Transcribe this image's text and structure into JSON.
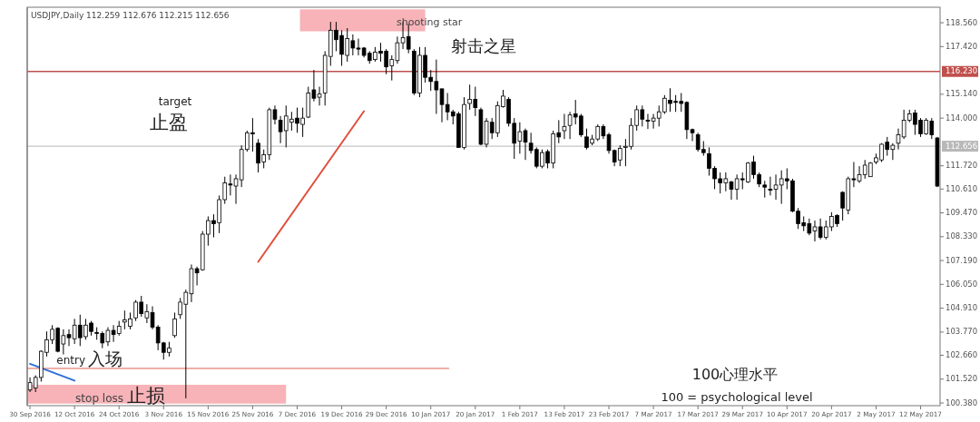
{
  "chart_data": {
    "type": "candlestick",
    "title": "USDJPY,Daily 112.259 112.676 112.215 112.656",
    "categories": [
      "30 Sep 2016",
      null,
      null,
      null,
      null,
      null,
      null,
      null,
      "12 Oct 2016",
      null,
      null,
      null,
      null,
      null,
      null,
      null,
      "24 Oct 2016",
      null,
      null,
      null,
      null,
      null,
      null,
      null,
      "3 Nov 2016",
      null,
      null,
      null,
      null,
      null,
      null,
      null,
      "15 Nov 2016",
      null,
      null,
      null,
      null,
      null,
      null,
      null,
      "25 Nov 2016",
      null,
      null,
      null,
      null,
      null,
      null,
      null,
      "7 Dec 2016",
      null,
      null,
      null,
      null,
      null,
      null,
      null,
      "19 Dec 2016",
      null,
      null,
      null,
      null,
      null,
      null,
      null,
      "29 Dec 2016",
      null,
      null,
      null,
      null,
      null,
      null,
      null,
      "10 Jan 2017",
      null,
      null,
      null,
      null,
      null,
      null,
      null,
      "20 Jan 2017",
      null,
      null,
      null,
      null,
      null,
      null,
      null,
      "1 Feb 2017",
      null,
      null,
      null,
      null,
      null,
      null,
      null,
      "13 Feb 2017",
      null,
      null,
      null,
      null,
      null,
      null,
      null,
      "23 Feb 2017",
      null,
      null,
      null,
      null,
      null,
      null,
      null,
      "7 Mar 2017",
      null,
      null,
      null,
      null,
      null,
      null,
      null,
      "17 Mar 2017",
      null,
      null,
      null,
      null,
      null,
      null,
      null,
      "29 Mar 2017",
      null,
      null,
      null,
      null,
      null,
      null,
      null,
      "10 Apr 2017",
      null,
      null,
      null,
      null,
      null,
      null,
      null,
      "20 Apr 2017",
      null,
      null,
      null,
      null,
      null,
      null,
      null,
      "2 May 2017",
      null,
      null,
      null,
      null,
      null,
      null,
      null,
      "12 May 2017",
      null,
      null,
      null
    ],
    "ohlc": [
      [
        101.0,
        101.6,
        100.9,
        101.35
      ],
      [
        101.1,
        101.7,
        100.9,
        101.6
      ],
      [
        101.6,
        102.9,
        101.4,
        102.85
      ],
      [
        102.8,
        103.8,
        102.6,
        103.4
      ],
      [
        103.4,
        104.1,
        103.2,
        103.9
      ],
      [
        103.95,
        104.0,
        102.8,
        102.85
      ],
      [
        103.2,
        103.9,
        102.7,
        103.6
      ],
      [
        103.65,
        103.9,
        103.1,
        103.5
      ],
      [
        103.45,
        104.4,
        103.2,
        104.1
      ],
      [
        104.1,
        104.6,
        103.1,
        103.5
      ],
      [
        103.55,
        104.4,
        103.4,
        104.1
      ],
      [
        104.2,
        104.3,
        103.6,
        103.8
      ],
      [
        103.75,
        104.0,
        103.4,
        103.7
      ],
      [
        103.7,
        103.8,
        103.0,
        103.25
      ],
      [
        103.3,
        104.0,
        103.1,
        103.85
      ],
      [
        103.85,
        104.1,
        103.3,
        103.65
      ],
      [
        103.7,
        104.3,
        103.6,
        104.05
      ],
      [
        104.25,
        104.8,
        103.9,
        104.35
      ],
      [
        104.05,
        104.7,
        103.9,
        104.4
      ],
      [
        104.45,
        105.3,
        104.3,
        105.2
      ],
      [
        105.2,
        105.5,
        104.5,
        104.65
      ],
      [
        104.45,
        105.1,
        104.2,
        104.75
      ],
      [
        104.7,
        105.0,
        103.9,
        104.0
      ],
      [
        104.0,
        104.1,
        102.9,
        103.25
      ],
      [
        103.25,
        103.3,
        102.45,
        102.8
      ],
      [
        102.8,
        103.3,
        102.6,
        103.0
      ],
      [
        103.6,
        104.7,
        103.5,
        104.4
      ],
      [
        104.6,
        105.4,
        104.4,
        105.2
      ],
      [
        105.1,
        105.8,
        100.6,
        105.67
      ],
      [
        105.6,
        107.0,
        105.2,
        106.8
      ],
      [
        106.8,
        106.9,
        106.0,
        106.6
      ],
      [
        106.75,
        108.6,
        106.7,
        108.45
      ],
      [
        108.45,
        109.3,
        107.9,
        109.1
      ],
      [
        109.1,
        109.4,
        108.3,
        108.95
      ],
      [
        109.0,
        110.3,
        108.5,
        110.1
      ],
      [
        110.1,
        111.2,
        109.9,
        110.9
      ],
      [
        110.85,
        111.3,
        110.3,
        110.8
      ],
      [
        110.75,
        111.3,
        109.9,
        111.1
      ],
      [
        111.05,
        112.7,
        110.7,
        112.5
      ],
      [
        112.5,
        113.4,
        112.4,
        113.3
      ],
      [
        113.3,
        114.0,
        112.4,
        113.25
      ],
      [
        112.8,
        113.0,
        111.4,
        111.85
      ],
      [
        111.9,
        112.5,
        111.6,
        112.25
      ],
      [
        112.25,
        114.5,
        112.0,
        114.4
      ],
      [
        114.4,
        114.6,
        113.7,
        113.95
      ],
      [
        113.9,
        114.1,
        112.8,
        113.35
      ],
      [
        113.4,
        114.6,
        112.6,
        114.1
      ],
      [
        113.8,
        114.3,
        113.4,
        113.95
      ],
      [
        114.0,
        114.5,
        113.3,
        113.75
      ],
      [
        113.7,
        114.5,
        113.1,
        114.0
      ],
      [
        114.05,
        115.5,
        114.0,
        115.2
      ],
      [
        115.35,
        116.3,
        114.8,
        114.95
      ],
      [
        115.0,
        115.5,
        114.6,
        115.15
      ],
      [
        115.2,
        117.2,
        114.6,
        117.0
      ],
      [
        116.95,
        118.6,
        116.5,
        118.2
      ],
      [
        118.2,
        118.6,
        117.2,
        117.75
      ],
      [
        117.95,
        118.2,
        116.5,
        117.05
      ],
      [
        117.0,
        118.3,
        116.7,
        117.8
      ],
      [
        117.7,
        118.0,
        117.0,
        117.35
      ],
      [
        117.35,
        117.8,
        117.0,
        117.3
      ],
      [
        117.35,
        117.4,
        116.9,
        117.0
      ],
      [
        117.1,
        117.2,
        116.6,
        116.75
      ],
      [
        116.8,
        117.4,
        116.7,
        117.15
      ],
      [
        117.2,
        117.6,
        116.7,
        117.1
      ],
      [
        117.2,
        117.3,
        116.1,
        116.45
      ],
      [
        116.5,
        117.0,
        115.8,
        116.8
      ],
      [
        116.75,
        117.9,
        116.6,
        117.6
      ],
      [
        117.6,
        118.6,
        117.3,
        117.85
      ],
      [
        117.9,
        118.5,
        117.1,
        117.3
      ],
      [
        117.2,
        117.3,
        115.1,
        115.2
      ],
      [
        115.2,
        117.4,
        115.0,
        117.0
      ],
      [
        117.0,
        117.4,
        115.7,
        115.95
      ],
      [
        115.95,
        116.3,
        115.3,
        115.75
      ],
      [
        115.75,
        116.8,
        114.2,
        115.35
      ],
      [
        115.4,
        115.4,
        113.8,
        114.65
      ],
      [
        114.65,
        115.2,
        113.9,
        114.3
      ],
      [
        114.3,
        114.4,
        113.7,
        114.1
      ],
      [
        114.2,
        114.3,
        112.6,
        112.6
      ],
      [
        112.6,
        115.0,
        112.5,
        114.65
      ],
      [
        114.7,
        115.6,
        114.4,
        114.9
      ],
      [
        114.9,
        115.5,
        114.1,
        114.5
      ],
      [
        114.4,
        114.5,
        112.7,
        112.75
      ],
      [
        112.75,
        114.0,
        112.6,
        113.85
      ],
      [
        113.8,
        114.0,
        113.0,
        113.3
      ],
      [
        113.3,
        114.8,
        113.1,
        114.6
      ],
      [
        114.55,
        115.35,
        114.5,
        115.05
      ],
      [
        114.9,
        115.0,
        113.6,
        113.75
      ],
      [
        113.75,
        114.0,
        112.05,
        112.8
      ],
      [
        112.9,
        113.8,
        112.3,
        113.35
      ],
      [
        113.4,
        113.5,
        112.0,
        112.85
      ],
      [
        112.8,
        113.3,
        112.3,
        112.45
      ],
      [
        112.5,
        112.6,
        111.6,
        111.7
      ],
      [
        111.7,
        112.5,
        111.6,
        112.35
      ],
      [
        112.4,
        112.5,
        111.6,
        111.85
      ],
      [
        111.85,
        113.4,
        111.6,
        113.25
      ],
      [
        113.3,
        113.9,
        112.8,
        113.1
      ],
      [
        113.4,
        114.2,
        113.0,
        113.6
      ],
      [
        113.65,
        114.3,
        113.0,
        114.15
      ],
      [
        114.2,
        114.87,
        113.7,
        114.05
      ],
      [
        114.1,
        114.2,
        113.1,
        113.2
      ],
      [
        113.1,
        113.5,
        112.5,
        112.6
      ],
      [
        112.8,
        113.2,
        112.7,
        113.0
      ],
      [
        113.0,
        113.7,
        112.9,
        113.6
      ],
      [
        113.6,
        113.7,
        113.0,
        113.15
      ],
      [
        113.2,
        113.3,
        112.3,
        112.45
      ],
      [
        112.45,
        112.5,
        111.7,
        111.9
      ],
      [
        112.0,
        112.7,
        111.7,
        112.55
      ],
      [
        112.6,
        113.0,
        111.7,
        112.65
      ],
      [
        112.65,
        114.0,
        112.5,
        113.65
      ],
      [
        113.65,
        114.6,
        113.4,
        114.4
      ],
      [
        114.4,
        114.6,
        113.6,
        113.95
      ],
      [
        113.9,
        114.2,
        113.48,
        113.85
      ],
      [
        113.85,
        114.2,
        113.5,
        114.0
      ],
      [
        114.0,
        114.6,
        113.6,
        114.3
      ],
      [
        114.3,
        115.1,
        114.2,
        114.95
      ],
      [
        114.85,
        115.43,
        114.3,
        114.7
      ],
      [
        114.8,
        115.1,
        114.3,
        114.75
      ],
      [
        114.8,
        115.2,
        114.3,
        114.7
      ],
      [
        114.75,
        114.8,
        113.0,
        113.45
      ],
      [
        113.45,
        113.5,
        112.9,
        113.3
      ],
      [
        113.2,
        113.3,
        112.4,
        112.5
      ],
      [
        112.5,
        112.9,
        112.2,
        112.35
      ],
      [
        112.3,
        112.6,
        111.25,
        111.6
      ],
      [
        111.6,
        111.7,
        110.6,
        111.1
      ],
      [
        111.1,
        111.4,
        110.4,
        110.9
      ],
      [
        110.9,
        111.4,
        110.5,
        111.1
      ],
      [
        110.95,
        111.0,
        110.1,
        110.6
      ],
      [
        110.6,
        111.3,
        110.1,
        111.1
      ],
      [
        111.1,
        111.4,
        110.6,
        111.05
      ],
      [
        110.95,
        111.9,
        110.9,
        111.85
      ],
      [
        111.9,
        112.2,
        111.1,
        111.3
      ],
      [
        111.3,
        111.4,
        110.7,
        110.85
      ],
      [
        110.8,
        111.0,
        110.2,
        110.7
      ],
      [
        110.6,
        111.2,
        110.3,
        110.55
      ],
      [
        110.6,
        111.3,
        110.1,
        110.8
      ],
      [
        110.8,
        111.5,
        109.9,
        111.1
      ],
      [
        111.1,
        111.6,
        110.6,
        111.0
      ],
      [
        111.0,
        111.1,
        109.5,
        109.55
      ],
      [
        109.55,
        109.7,
        108.7,
        108.95
      ],
      [
        109.0,
        109.3,
        108.6,
        108.85
      ],
      [
        108.95,
        109.2,
        108.4,
        108.5
      ],
      [
        108.6,
        109.1,
        108.1,
        108.8
      ],
      [
        108.8,
        109.2,
        108.2,
        108.3
      ],
      [
        108.3,
        109.1,
        108.2,
        108.8
      ],
      [
        108.8,
        109.5,
        108.6,
        109.3
      ],
      [
        109.35,
        109.4,
        108.8,
        108.95
      ],
      [
        110.45,
        110.5,
        109.1,
        109.7
      ],
      [
        109.6,
        111.2,
        109.4,
        111.1
      ],
      [
        111.1,
        111.9,
        110.7,
        111.05
      ],
      [
        111.0,
        111.7,
        110.9,
        111.3
      ],
      [
        111.3,
        112.0,
        111.1,
        111.75
      ],
      [
        111.2,
        111.9,
        111.2,
        111.85
      ],
      [
        111.9,
        112.3,
        111.8,
        112.1
      ],
      [
        112.0,
        112.8,
        111.9,
        112.75
      ],
      [
        112.85,
        113.1,
        112.2,
        112.5
      ],
      [
        112.5,
        112.8,
        112.0,
        112.7
      ],
      [
        112.8,
        113.5,
        112.5,
        113.2
      ],
      [
        113.1,
        114.4,
        113.0,
        113.9
      ],
      [
        113.9,
        114.4,
        113.8,
        114.2
      ],
      [
        114.25,
        114.4,
        113.2,
        113.7
      ],
      [
        113.9,
        114.0,
        113.1,
        113.25
      ],
      [
        113.25,
        114.0,
        113.2,
        113.9
      ],
      [
        113.85,
        114.0,
        113.0,
        113.2
      ],
      [
        113.05,
        113.1,
        110.7,
        110.75
      ]
    ],
    "series": [
      {
        "type": "line",
        "color": "#2f6fd6",
        "values": [
          102.25,
          null,
          null,
          null,
          null,
          null,
          null,
          null,
          101.45,
          null,
          null,
          null,
          null,
          null,
          null,
          null,
          null,
          null,
          null,
          null,
          null,
          null,
          null,
          null,
          null,
          null,
          null,
          null,
          null,
          null,
          null,
          null,
          null,
          null,
          null,
          null,
          null,
          null,
          null,
          null,
          null,
          null,
          null,
          null,
          null,
          null,
          null,
          null,
          null,
          null,
          null,
          null,
          null,
          null,
          null,
          null,
          null,
          null,
          null,
          null,
          null,
          null,
          null,
          null,
          null,
          null,
          null,
          null,
          null,
          null,
          null,
          null,
          null,
          null,
          null,
          null,
          null,
          null,
          null,
          null,
          null,
          null,
          null,
          null,
          null,
          null,
          null,
          null,
          null,
          null,
          null,
          null,
          null,
          null,
          null,
          null,
          null,
          null,
          null,
          null,
          null,
          null,
          null,
          null,
          null,
          null,
          null,
          null,
          null,
          null,
          null,
          null,
          null,
          null,
          null,
          null,
          null,
          null,
          null,
          null,
          null,
          null,
          null,
          null,
          null,
          null,
          null,
          null,
          null,
          null,
          null,
          null,
          null,
          null,
          null,
          null,
          null,
          null,
          null,
          null,
          null,
          null,
          null,
          null,
          null,
          null,
          null,
          null,
          null,
          null,
          null,
          null,
          null,
          null,
          null,
          null,
          null,
          null,
          null,
          null,
          null,
          null,
          null,
          null
        ]
      },
      {
        "type": "line",
        "color": "#e0503c",
        "values": [
          null,
          null,
          null,
          null,
          null,
          null,
          null,
          null,
          null,
          null,
          null,
          null,
          null,
          null,
          null,
          null,
          null,
          null,
          null,
          null,
          null,
          null,
          null,
          null,
          null,
          null,
          null,
          null,
          null,
          null,
          null,
          null,
          null,
          null,
          null,
          null,
          null,
          null,
          null,
          null,
          null,
          107.13,
          null,
          null,
          null,
          null,
          null,
          null,
          null,
          null,
          null,
          null,
          null,
          null,
          null,
          null,
          null,
          null,
          null,
          null,
          114.33,
          null,
          null,
          null,
          null,
          null,
          null,
          null,
          null,
          null,
          null,
          null,
          null,
          null,
          null,
          null,
          null,
          null,
          null,
          null,
          null,
          null,
          null,
          null,
          null,
          null,
          null,
          null,
          null,
          null,
          null,
          null,
          null,
          null,
          null,
          null,
          null,
          null,
          null,
          null,
          null,
          null,
          null,
          null,
          null,
          null,
          null,
          null,
          null,
          null,
          null,
          null,
          null,
          null,
          null,
          null,
          null,
          null,
          null,
          null,
          null,
          null,
          null,
          null,
          null,
          null,
          null,
          null,
          null,
          null,
          null,
          null,
          null,
          null,
          null,
          null,
          null,
          null,
          null,
          null,
          null,
          null,
          null,
          null,
          null,
          null,
          null,
          null,
          null,
          null,
          null,
          null,
          null,
          null,
          null,
          null,
          null,
          null,
          null,
          null,
          null,
          null,
          null,
          null
        ]
      }
    ],
    "ylim": [
      100.25,
      119.3
    ],
    "yticks": [
      {
        "value": 118.56,
        "label": "118.560"
      },
      {
        "value": 117.42,
        "label": "117.420"
      },
      {
        "value": 115.14,
        "label": "115.140"
      },
      {
        "value": 114.0,
        "label": "114.000"
      },
      {
        "value": 111.72,
        "label": "111.720"
      },
      {
        "value": 110.61,
        "label": "110.610"
      },
      {
        "value": 109.47,
        "label": "109.470"
      },
      {
        "value": 108.33,
        "label": "108.330"
      },
      {
        "value": 107.19,
        "label": "107.190"
      },
      {
        "value": 106.05,
        "label": "106.050"
      },
      {
        "value": 104.91,
        "label": "104.910"
      },
      {
        "value": 103.77,
        "label": "103.770"
      },
      {
        "value": 102.66,
        "label": "102.660"
      },
      {
        "value": 101.52,
        "label": "101.520"
      },
      {
        "value": 100.38,
        "label": "100.380"
      }
    ],
    "ref_lines": [
      {
        "axis": "y",
        "value": 116.23,
        "label": "116.230",
        "color": "#c0504d"
      },
      {
        "axis": "y",
        "value": 112.656,
        "label": "112.656",
        "color": "#b8b8b8"
      },
      {
        "axis": "y",
        "value": 102.03,
        "color": "#e06050"
      }
    ],
    "bands": [
      {
        "axis": "y",
        "from": 100.35,
        "to": 101.25,
        "label": "stop loss",
        "color": "#f7b3b8"
      },
      {
        "axis": "y",
        "from": 118.15,
        "to": 119.2,
        "label": "shooting star",
        "color": "#f7b3b8"
      }
    ],
    "annotations": [
      "target",
      "止盈",
      "射击之星",
      "entry",
      "入场",
      "止损",
      "100心理水平",
      "100 = psychological level"
    ],
    "grid": false
  }
}
